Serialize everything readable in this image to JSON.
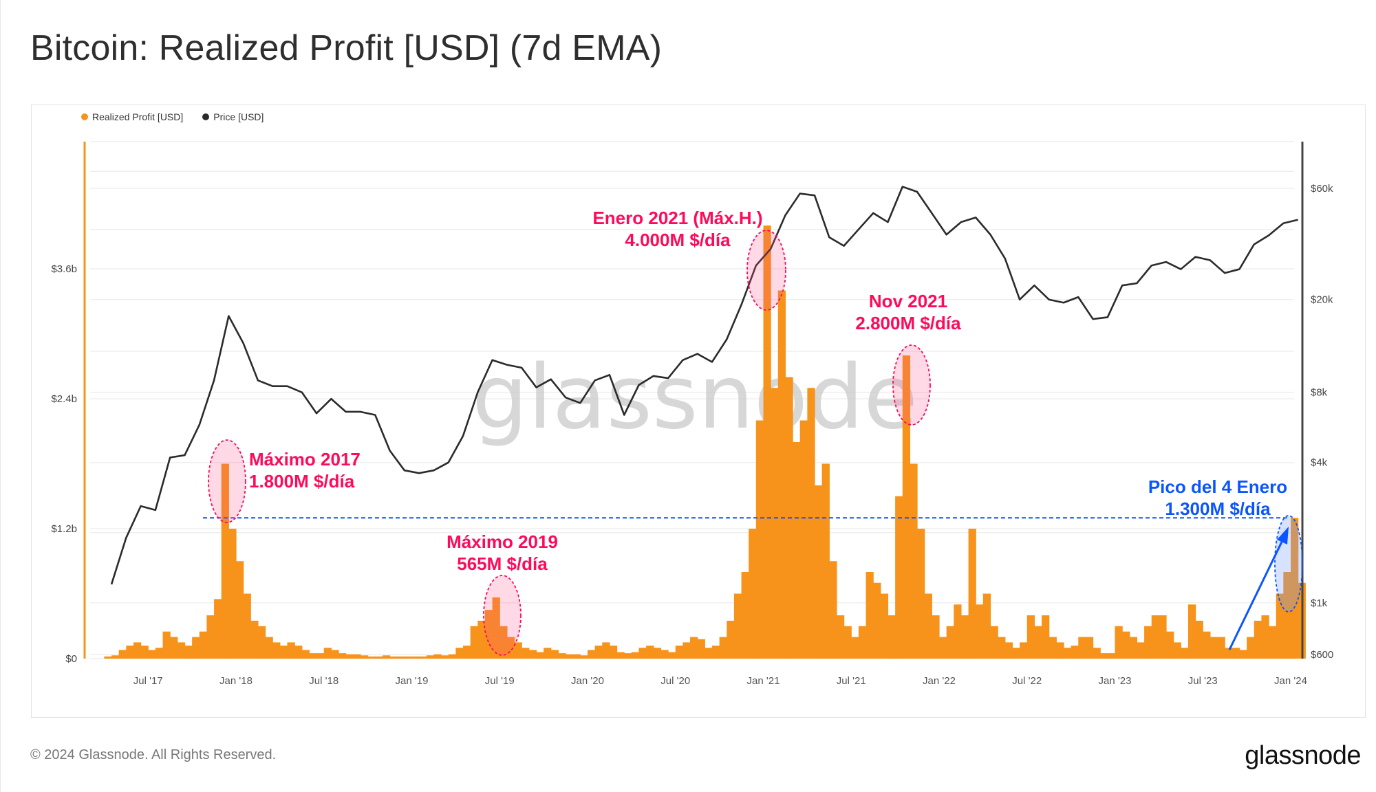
{
  "title": "Bitcoin: Realized Profit [USD] (7d EMA)",
  "footer": {
    "copyright": "© 2024 Glassnode. All Rights Reserved.",
    "logo": "glassnode"
  },
  "watermark": "glassnode",
  "colors": {
    "profit": "#f7931a",
    "price": "#2b2b2b",
    "annotation": "#ff0a5a",
    "highlight": "#0a55ff"
  },
  "chart_data": {
    "type": "bar+line",
    "title": "Bitcoin: Realized Profit [USD] (7d EMA)",
    "legend": {
      "placement": "top-left",
      "entries": [
        "Realized Profit [USD]",
        "Price [USD]"
      ]
    },
    "grid": true,
    "x_ticks": [
      "Jul '17",
      "Jan '18",
      "Jul '18",
      "Jan '19",
      "Jul '19",
      "Jan '20",
      "Jul '20",
      "Jan '21",
      "Jul '21",
      "Jan '22",
      "Jul '22",
      "Jan '23",
      "Jul '23",
      "Jan '24"
    ],
    "y_left": {
      "series": "Realized Profit [USD]",
      "ticks": [
        "$0",
        "$1.2b",
        "$2.4b",
        "$3.6b"
      ],
      "tick_values": [
        0,
        1.2,
        2.4,
        3.6
      ],
      "unit": "billion USD",
      "scale": "linear"
    },
    "y_right": {
      "series": "Price [USD]",
      "ticks": [
        "$600",
        "$1k",
        "$4k",
        "$8k",
        "$20k",
        "$60k"
      ],
      "tick_values": [
        600,
        1000,
        4000,
        8000,
        20000,
        60000
      ],
      "scale": "log"
    },
    "data": [
      {
        "m": "2017-04",
        "price": 1200,
        "profit": [
          0.02,
          0.03
        ]
      },
      {
        "m": "2017-05",
        "price": 1900,
        "profit": [
          0.08,
          0.12
        ]
      },
      {
        "m": "2017-06",
        "price": 2600,
        "profit": [
          0.15,
          0.12
        ]
      },
      {
        "m": "2017-07",
        "price": 2500,
        "profit": [
          0.08,
          0.1
        ]
      },
      {
        "m": "2017-08",
        "price": 4200,
        "profit": [
          0.25,
          0.2
        ]
      },
      {
        "m": "2017-09",
        "price": 4300,
        "profit": [
          0.15,
          0.12
        ]
      },
      {
        "m": "2017-10",
        "price": 5800,
        "profit": [
          0.2,
          0.25
        ]
      },
      {
        "m": "2017-11",
        "price": 9000,
        "profit": [
          0.4,
          0.55
        ]
      },
      {
        "m": "2017-12",
        "price": 17000,
        "profit": [
          1.8,
          1.2
        ]
      },
      {
        "m": "2018-01",
        "price": 13000,
        "profit": [
          0.9,
          0.6
        ]
      },
      {
        "m": "2018-02",
        "price": 9000,
        "profit": [
          0.35,
          0.3
        ]
      },
      {
        "m": "2018-03",
        "price": 8500,
        "profit": [
          0.2,
          0.15
        ]
      },
      {
        "m": "2018-04",
        "price": 8500,
        "profit": [
          0.12,
          0.15
        ]
      },
      {
        "m": "2018-05",
        "price": 8000,
        "profit": [
          0.12,
          0.08
        ]
      },
      {
        "m": "2018-06",
        "price": 6500,
        "profit": [
          0.05,
          0.05
        ]
      },
      {
        "m": "2018-07",
        "price": 7500,
        "profit": [
          0.1,
          0.08
        ]
      },
      {
        "m": "2018-08",
        "price": 6600,
        "profit": [
          0.05,
          0.04
        ]
      },
      {
        "m": "2018-09",
        "price": 6600,
        "profit": [
          0.04,
          0.03
        ]
      },
      {
        "m": "2018-10",
        "price": 6400,
        "profit": [
          0.02,
          0.02
        ]
      },
      {
        "m": "2018-11",
        "price": 4500,
        "profit": [
          0.03,
          0.02
        ]
      },
      {
        "m": "2018-12",
        "price": 3700,
        "profit": [
          0.02,
          0.02
        ]
      },
      {
        "m": "2019-01",
        "price": 3600,
        "profit": [
          0.02,
          0.02
        ]
      },
      {
        "m": "2019-02",
        "price": 3700,
        "profit": [
          0.03,
          0.04
        ]
      },
      {
        "m": "2019-03",
        "price": 4000,
        "profit": [
          0.03,
          0.04
        ]
      },
      {
        "m": "2019-04",
        "price": 5200,
        "profit": [
          0.1,
          0.12
        ]
      },
      {
        "m": "2019-05",
        "price": 8000,
        "profit": [
          0.3,
          0.35
        ]
      },
      {
        "m": "2019-06",
        "price": 11000,
        "profit": [
          0.45,
          0.565
        ]
      },
      {
        "m": "2019-07",
        "price": 10500,
        "profit": [
          0.3,
          0.2
        ]
      },
      {
        "m": "2019-08",
        "price": 10200,
        "profit": [
          0.15,
          0.1
        ]
      },
      {
        "m": "2019-09",
        "price": 8400,
        "profit": [
          0.08,
          0.06
        ]
      },
      {
        "m": "2019-10",
        "price": 9100,
        "profit": [
          0.1,
          0.08
        ]
      },
      {
        "m": "2019-11",
        "price": 7600,
        "profit": [
          0.05,
          0.04
        ]
      },
      {
        "m": "2019-12",
        "price": 7200,
        "profit": [
          0.04,
          0.03
        ]
      },
      {
        "m": "2020-01",
        "price": 9000,
        "profit": [
          0.08,
          0.12
        ]
      },
      {
        "m": "2020-02",
        "price": 9500,
        "profit": [
          0.15,
          0.12
        ]
      },
      {
        "m": "2020-03",
        "price": 6400,
        "profit": [
          0.06,
          0.05
        ]
      },
      {
        "m": "2020-04",
        "price": 8600,
        "profit": [
          0.06,
          0.1
        ]
      },
      {
        "m": "2020-05",
        "price": 9400,
        "profit": [
          0.12,
          0.1
        ]
      },
      {
        "m": "2020-06",
        "price": 9200,
        "profit": [
          0.08,
          0.06
        ]
      },
      {
        "m": "2020-07",
        "price": 11000,
        "profit": [
          0.12,
          0.15
        ]
      },
      {
        "m": "2020-08",
        "price": 11700,
        "profit": [
          0.2,
          0.18
        ]
      },
      {
        "m": "2020-09",
        "price": 10800,
        "profit": [
          0.1,
          0.12
        ]
      },
      {
        "m": "2020-10",
        "price": 13500,
        "profit": [
          0.2,
          0.35
        ]
      },
      {
        "m": "2020-11",
        "price": 19000,
        "profit": [
          0.6,
          0.8
        ]
      },
      {
        "m": "2020-12",
        "price": 28000,
        "profit": [
          1.2,
          2.2
        ]
      },
      {
        "m": "2021-01",
        "price": 33000,
        "profit": [
          4.0,
          2.5
        ]
      },
      {
        "m": "2021-02",
        "price": 46000,
        "profit": [
          3.4,
          2.6
        ]
      },
      {
        "m": "2021-03",
        "price": 57000,
        "profit": [
          2.0,
          2.2
        ]
      },
      {
        "m": "2021-04",
        "price": 56000,
        "profit": [
          2.5,
          1.6
        ]
      },
      {
        "m": "2021-05",
        "price": 37000,
        "profit": [
          1.8,
          0.9
        ]
      },
      {
        "m": "2021-06",
        "price": 34000,
        "profit": [
          0.4,
          0.3
        ]
      },
      {
        "m": "2021-07",
        "price": 40000,
        "profit": [
          0.2,
          0.3
        ]
      },
      {
        "m": "2021-08",
        "price": 47000,
        "profit": [
          0.8,
          0.7
        ]
      },
      {
        "m": "2021-09",
        "price": 43000,
        "profit": [
          0.6,
          0.4
        ]
      },
      {
        "m": "2021-10",
        "price": 61000,
        "profit": [
          1.5,
          2.8
        ]
      },
      {
        "m": "2021-11",
        "price": 58000,
        "profit": [
          1.8,
          1.2
        ]
      },
      {
        "m": "2021-12",
        "price": 47000,
        "profit": [
          0.6,
          0.4
        ]
      },
      {
        "m": "2022-01",
        "price": 38000,
        "profit": [
          0.2,
          0.3
        ]
      },
      {
        "m": "2022-02",
        "price": 43000,
        "profit": [
          0.5,
          0.4
        ]
      },
      {
        "m": "2022-03",
        "price": 45000,
        "profit": [
          1.2,
          0.5
        ]
      },
      {
        "m": "2022-04",
        "price": 38000,
        "profit": [
          0.6,
          0.3
        ]
      },
      {
        "m": "2022-05",
        "price": 30000,
        "profit": [
          0.2,
          0.15
        ]
      },
      {
        "m": "2022-06",
        "price": 20000,
        "profit": [
          0.1,
          0.15
        ]
      },
      {
        "m": "2022-07",
        "price": 23000,
        "profit": [
          0.4,
          0.3
        ]
      },
      {
        "m": "2022-08",
        "price": 20000,
        "profit": [
          0.4,
          0.2
        ]
      },
      {
        "m": "2022-09",
        "price": 19400,
        "profit": [
          0.15,
          0.1
        ]
      },
      {
        "m": "2022-10",
        "price": 20500,
        "profit": [
          0.12,
          0.2
        ]
      },
      {
        "m": "2022-11",
        "price": 16500,
        "profit": [
          0.2,
          0.1
        ]
      },
      {
        "m": "2022-12",
        "price": 16800,
        "profit": [
          0.05,
          0.05
        ]
      },
      {
        "m": "2023-01",
        "price": 23000,
        "profit": [
          0.3,
          0.25
        ]
      },
      {
        "m": "2023-02",
        "price": 23500,
        "profit": [
          0.2,
          0.15
        ]
      },
      {
        "m": "2023-03",
        "price": 28000,
        "profit": [
          0.3,
          0.4
        ]
      },
      {
        "m": "2023-04",
        "price": 29000,
        "profit": [
          0.4,
          0.25
        ]
      },
      {
        "m": "2023-05",
        "price": 27000,
        "profit": [
          0.15,
          0.1
        ]
      },
      {
        "m": "2023-06",
        "price": 30500,
        "profit": [
          0.5,
          0.35
        ]
      },
      {
        "m": "2023-07",
        "price": 29500,
        "profit": [
          0.25,
          0.2
        ]
      },
      {
        "m": "2023-08",
        "price": 26000,
        "profit": [
          0.2,
          0.1
        ]
      },
      {
        "m": "2023-09",
        "price": 27000,
        "profit": [
          0.1,
          0.08
        ]
      },
      {
        "m": "2023-10",
        "price": 34500,
        "profit": [
          0.2,
          0.35
        ]
      },
      {
        "m": "2023-11",
        "price": 37700,
        "profit": [
          0.4,
          0.3
        ]
      },
      {
        "m": "2023-12",
        "price": 42500,
        "profit": [
          0.6,
          0.8
        ]
      },
      {
        "m": "2024-01",
        "price": 44000,
        "profit": [
          1.3,
          0.7
        ]
      }
    ],
    "reference_line": {
      "value": 1.3,
      "unit": "billion USD",
      "style": "dashed"
    },
    "annotations": [
      {
        "id": "max2017",
        "month": "2017-12",
        "value": 1.8,
        "lines": [
          "Máximo 2017",
          "1.800M $/día"
        ],
        "color": "annotation"
      },
      {
        "id": "max2019",
        "month": "2019-06",
        "value": 0.565,
        "lines": [
          "Máximo 2019",
          "565M $/día"
        ],
        "color": "annotation"
      },
      {
        "id": "jan2021",
        "month": "2021-01",
        "value": 4.0,
        "lines": [
          "Enero 2021 (Máx.H.)",
          "4.000M $/día"
        ],
        "color": "annotation"
      },
      {
        "id": "nov2021",
        "month": "2021-10",
        "value": 2.8,
        "lines": [
          "Nov 2021",
          "2.800M $/día"
        ],
        "color": "annotation"
      },
      {
        "id": "jan2024",
        "month": "2024-01",
        "value": 1.3,
        "lines": [
          "Pico del 4 Enero",
          "1.300M $/día"
        ],
        "color": "highlight"
      }
    ]
  }
}
